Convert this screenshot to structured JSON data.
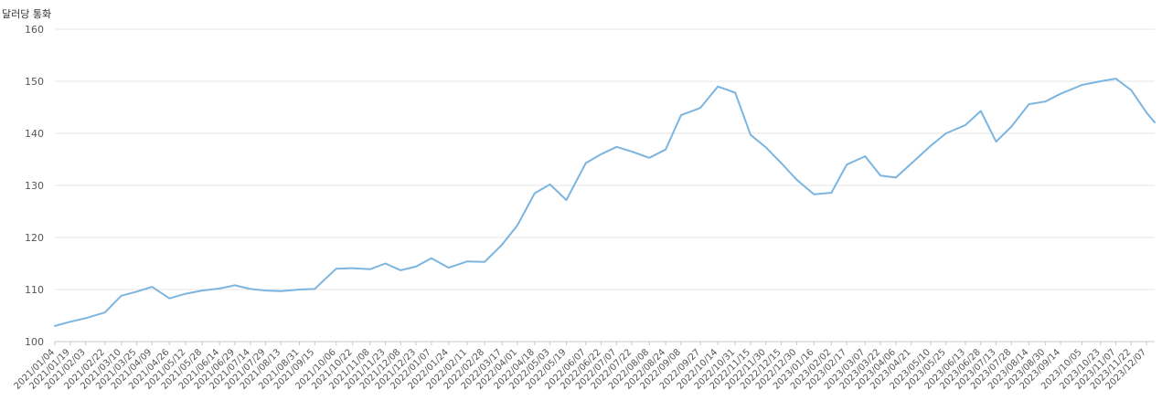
{
  "chart_data": {
    "type": "line",
    "y_unit_label": "달러당 통화",
    "ylim": [
      100,
      160
    ],
    "y_ticks": [
      100,
      110,
      120,
      130,
      140,
      150,
      160
    ],
    "grid": true,
    "legend": "none",
    "x_tick_labels": [
      "2021/01/04",
      "2021/01/19",
      "2021/02/03",
      "2021/02/22",
      "2021/03/10",
      "2021/03/25",
      "2021/04/09",
      "2021/04/26",
      "2021/05/12",
      "2021/05/28",
      "2021/06/14",
      "2021/06/29",
      "2021/07/14",
      "2021/07/29",
      "2021/08/13",
      "2021/08/31",
      "2021/09/15",
      "2021/10/06",
      "2021/10/22",
      "2021/11/08",
      "2021/11/23",
      "2021/12/08",
      "2021/12/23",
      "2022/01/07",
      "2022/01/24",
      "2022/02/11",
      "2022/02/28",
      "2022/03/17",
      "2022/04/01",
      "2022/04/18",
      "2022/05/03",
      "2022/05/19",
      "2022/06/07",
      "2022/06/22",
      "2022/07/07",
      "2022/07/22",
      "2022/08/08",
      "2022/08/24",
      "2022/09/08",
      "2022/09/27",
      "2022/10/14",
      "2022/10/31",
      "2022/11/15",
      "2022/11/30",
      "2022/12/15",
      "2022/12/30",
      "2023/01/16",
      "2023/02/02",
      "2023/02/17",
      "2023/03/07",
      "2023/03/22",
      "2023/04/06",
      "2023/04/21",
      "2023/05/10",
      "2023/05/25",
      "2023/06/13",
      "2023/06/28",
      "2023/07/13",
      "2023/07/28",
      "2023/08/14",
      "2023/08/30",
      "2023/09/14",
      "2023/10/05",
      "2023/10/23",
      "2023/11/07",
      "2023/11/22",
      "2023/12/07"
    ],
    "series": [
      {
        "color": "#7cb5e0",
        "x": [
          "2021/01/04",
          "2021/01/19",
          "2021/02/03",
          "2021/02/22",
          "2021/03/10",
          "2021/03/25",
          "2021/04/09",
          "2021/04/26",
          "2021/05/12",
          "2021/05/28",
          "2021/06/14",
          "2021/06/29",
          "2021/07/14",
          "2021/07/29",
          "2021/08/13",
          "2021/08/31",
          "2021/09/15",
          "2021/10/06",
          "2021/10/22",
          "2021/11/08",
          "2021/11/23",
          "2021/12/08",
          "2021/12/23",
          "2022/01/07",
          "2022/01/24",
          "2022/02/11",
          "2022/02/28",
          "2022/03/17",
          "2022/04/01",
          "2022/04/18",
          "2022/05/03",
          "2022/05/19",
          "2022/06/07",
          "2022/06/22",
          "2022/07/07",
          "2022/07/22",
          "2022/08/08",
          "2022/08/24",
          "2022/09/08",
          "2022/09/27",
          "2022/10/14",
          "2022/10/31",
          "2022/11/15",
          "2022/11/30",
          "2022/12/15",
          "2022/12/30",
          "2023/01/16",
          "2023/02/02",
          "2023/02/17",
          "2023/03/07",
          "2023/03/22",
          "2023/04/06",
          "2023/04/21",
          "2023/05/10",
          "2023/05/25",
          "2023/06/13",
          "2023/06/28",
          "2023/07/13",
          "2023/07/28",
          "2023/08/14",
          "2023/08/30",
          "2023/09/14",
          "2023/10/05",
          "2023/10/23",
          "2023/11/07",
          "2023/11/22",
          "2023/12/07",
          "2023/12/15"
        ],
        "values": [
          103.0,
          103.8,
          104.5,
          105.6,
          108.8,
          109.6,
          110.5,
          108.3,
          109.2,
          109.8,
          110.2,
          110.8,
          110.1,
          109.8,
          109.7,
          110.0,
          110.1,
          114.0,
          114.1,
          113.9,
          115.0,
          113.7,
          114.4,
          116.0,
          114.2,
          115.4,
          115.3,
          118.6,
          122.3,
          128.5,
          130.2,
          127.2,
          134.3,
          136.0,
          137.4,
          136.5,
          135.3,
          136.9,
          143.5,
          144.9,
          149.0,
          147.8,
          139.7,
          137.3,
          134.3,
          131.1,
          128.3,
          128.6,
          134.0,
          135.6,
          131.9,
          131.5,
          134.2,
          137.6,
          140.0,
          141.6,
          144.3,
          138.4,
          141.3,
          145.6,
          146.1,
          147.6,
          149.3,
          150.0,
          150.5,
          148.3,
          144.0,
          142.1
        ]
      }
    ]
  }
}
